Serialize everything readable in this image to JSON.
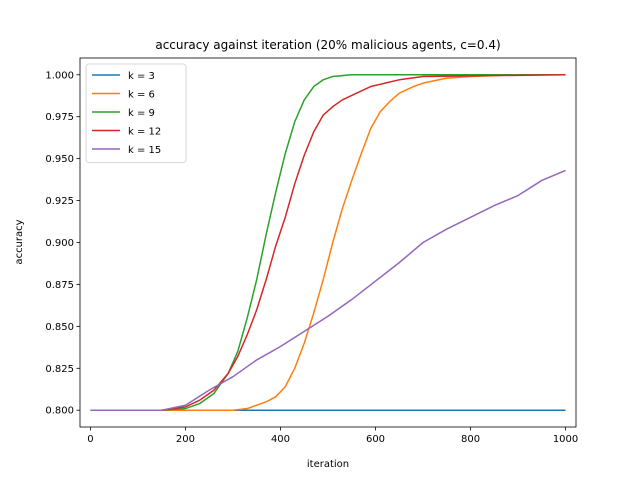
{
  "chart_data": {
    "type": "line",
    "title": "accuracy against iteration (20% malicious agents, c=0.4)",
    "xlabel": "iteration",
    "ylabel": "accuracy",
    "xlim": [
      -22,
      1022
    ],
    "ylim": [
      0.79,
      1.01
    ],
    "xticks": [
      0,
      200,
      400,
      600,
      800,
      1000
    ],
    "yticks": [
      0.8,
      0.825,
      0.85,
      0.875,
      0.9,
      0.925,
      0.95,
      0.975,
      1.0
    ],
    "xtick_labels": [
      "0",
      "200",
      "400",
      "600",
      "800",
      "1000"
    ],
    "ytick_labels": [
      "0.800",
      "0.825",
      "0.850",
      "0.875",
      "0.900",
      "0.925",
      "0.950",
      "0.975",
      "1.000"
    ],
    "grid": false,
    "legend_position": "top-left",
    "series": [
      {
        "name": "k = 3",
        "color": "#1f77b4",
        "x": [
          0,
          100,
          200,
          300,
          400,
          500,
          600,
          700,
          800,
          900,
          1000
        ],
        "y": [
          0.8,
          0.8,
          0.8,
          0.8,
          0.8,
          0.8,
          0.8,
          0.8,
          0.8,
          0.8,
          0.8
        ]
      },
      {
        "name": "k = 6",
        "color": "#ff7f0e",
        "x": [
          0,
          100,
          200,
          250,
          300,
          330,
          350,
          370,
          390,
          410,
          430,
          450,
          470,
          490,
          510,
          530,
          550,
          570,
          590,
          610,
          630,
          650,
          680,
          700,
          750,
          800,
          900,
          1000
        ],
        "y": [
          0.8,
          0.8,
          0.8,
          0.8,
          0.8,
          0.801,
          0.803,
          0.805,
          0.808,
          0.814,
          0.825,
          0.84,
          0.858,
          0.878,
          0.9,
          0.92,
          0.937,
          0.953,
          0.968,
          0.978,
          0.984,
          0.989,
          0.993,
          0.995,
          0.998,
          0.999,
          1.0,
          1.0
        ]
      },
      {
        "name": "k = 9",
        "color": "#2ca02c",
        "x": [
          0,
          100,
          150,
          200,
          230,
          260,
          290,
          310,
          330,
          350,
          370,
          390,
          410,
          430,
          450,
          470,
          490,
          510,
          550,
          600,
          700,
          1000
        ],
        "y": [
          0.8,
          0.8,
          0.8,
          0.801,
          0.804,
          0.81,
          0.822,
          0.835,
          0.855,
          0.878,
          0.905,
          0.93,
          0.953,
          0.972,
          0.985,
          0.993,
          0.997,
          0.999,
          1.0,
          1.0,
          1.0,
          1.0
        ]
      },
      {
        "name": "k = 12",
        "color": "#d62728",
        "x": [
          0,
          100,
          150,
          200,
          230,
          260,
          290,
          310,
          330,
          350,
          370,
          390,
          410,
          430,
          450,
          470,
          490,
          510,
          530,
          560,
          590,
          620,
          650,
          700,
          1000
        ],
        "y": [
          0.8,
          0.8,
          0.8,
          0.802,
          0.806,
          0.812,
          0.822,
          0.832,
          0.845,
          0.86,
          0.878,
          0.898,
          0.915,
          0.935,
          0.952,
          0.966,
          0.976,
          0.981,
          0.985,
          0.989,
          0.993,
          0.995,
          0.997,
          0.999,
          1.0
        ]
      },
      {
        "name": "k = 15",
        "color": "#9467bd",
        "x": [
          0,
          100,
          150,
          200,
          250,
          300,
          350,
          400,
          450,
          500,
          550,
          600,
          650,
          700,
          750,
          800,
          850,
          900,
          950,
          1000
        ],
        "y": [
          0.8,
          0.8,
          0.8,
          0.803,
          0.812,
          0.82,
          0.83,
          0.838,
          0.847,
          0.856,
          0.866,
          0.877,
          0.888,
          0.9,
          0.908,
          0.915,
          0.922,
          0.928,
          0.937,
          0.943
        ]
      }
    ]
  }
}
